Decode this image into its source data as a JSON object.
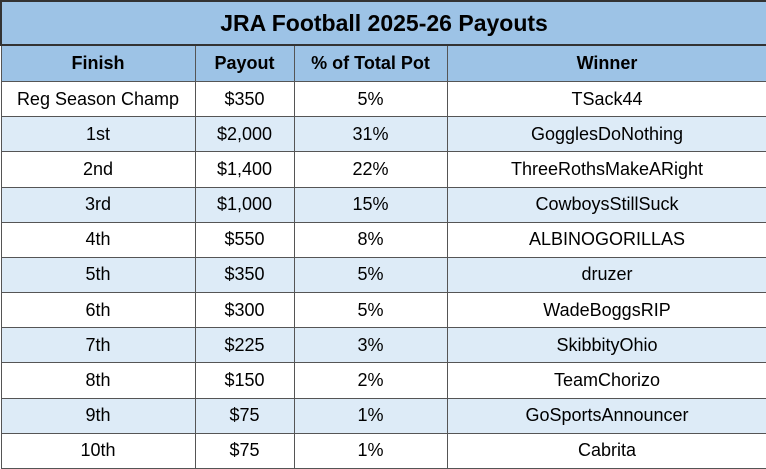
{
  "table": {
    "title": "JRA Football 2025-26 Payouts",
    "columns": [
      "Finish",
      "Payout",
      "% of Total Pot",
      "Winner"
    ],
    "rows": [
      [
        "Reg Season Champ",
        "$350",
        "5%",
        "TSack44"
      ],
      [
        "1st",
        "$2,000",
        "31%",
        "GogglesDoNothing"
      ],
      [
        "2nd",
        "$1,400",
        "22%",
        "ThreeRothsMakeARight"
      ],
      [
        "3rd",
        "$1,000",
        "15%",
        "CowboysStillSuck"
      ],
      [
        "4th",
        "$550",
        "8%",
        "ALBINOGORILLAS"
      ],
      [
        "5th",
        "$350",
        "5%",
        "druzer"
      ],
      [
        "6th",
        "$300",
        "5%",
        "WadeBoggsRIP"
      ],
      [
        "7th",
        "$225",
        "3%",
        "SkibbityOhio"
      ],
      [
        "8th",
        "$150",
        "2%",
        "TeamChorizo"
      ],
      [
        "9th",
        "$75",
        "1%",
        "GoSportsAnnouncer"
      ],
      [
        "10th",
        "$75",
        "1%",
        "Cabrita"
      ]
    ]
  }
}
